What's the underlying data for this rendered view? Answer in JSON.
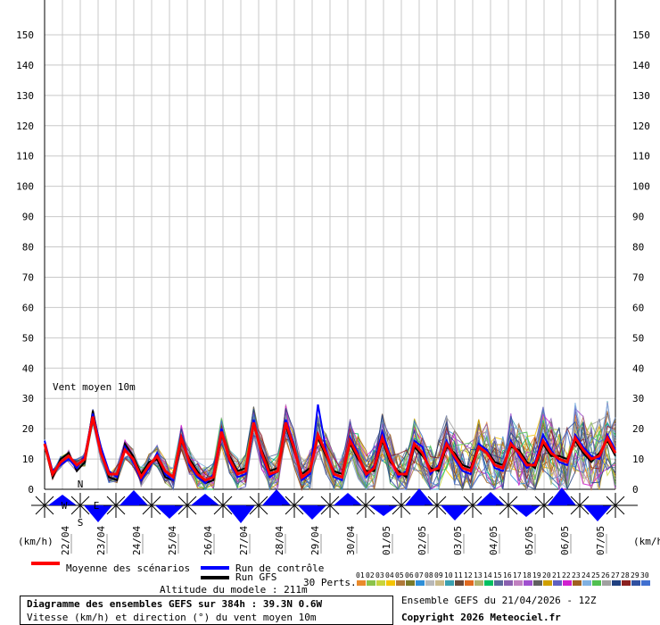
{
  "chart_data": {
    "type": "line",
    "y_ticks": [
      0,
      10,
      20,
      30,
      40,
      50,
      60,
      70,
      80,
      90,
      100,
      110,
      120,
      130,
      140,
      150
    ],
    "ylim": [
      0,
      155
    ],
    "x_dates": [
      "22/04",
      "23/04",
      "24/04",
      "25/04",
      "26/04",
      "27/04",
      "28/04",
      "29/04",
      "30/04",
      "01/05",
      "02/05",
      "03/05",
      "04/05",
      "05/05",
      "06/05",
      "07/05"
    ],
    "y_unit_left": "(km/h)",
    "y_unit_right": "(km/h)",
    "annotation": "Vent moyen 10m",
    "mean_series": {
      "name": "Moyenne des scénarios",
      "color": "#ff0000",
      "values": [
        15,
        5,
        9,
        11,
        8,
        10,
        24,
        12,
        5,
        5,
        13,
        10,
        4,
        8,
        11,
        6,
        4,
        17,
        9,
        5,
        3,
        4,
        19,
        10,
        5,
        6,
        22,
        12,
        5,
        6,
        22,
        14,
        4,
        6,
        18,
        12,
        5,
        4,
        16,
        11,
        5,
        7,
        17,
        10,
        5,
        5,
        15,
        12,
        6,
        7,
        15,
        11,
        7,
        6,
        14,
        12,
        8,
        7,
        15,
        12,
        8,
        8,
        16,
        12,
        10,
        9,
        17,
        13,
        10,
        11,
        17,
        12
      ]
    },
    "control_series": {
      "name": "Run de contrôle",
      "color": "#0000ff",
      "values": [
        16,
        6,
        8,
        10,
        7,
        11,
        25,
        14,
        6,
        4,
        14,
        9,
        3,
        7,
        12,
        5,
        3,
        18,
        8,
        4,
        2,
        5,
        20,
        9,
        4,
        5,
        23,
        11,
        4,
        6,
        23,
        15,
        3,
        5,
        28,
        13,
        4,
        3,
        17,
        12,
        4,
        8,
        19,
        11,
        4,
        6,
        16,
        14,
        5,
        8,
        16,
        10,
        6,
        5,
        15,
        13,
        7,
        6,
        16,
        11,
        7,
        9,
        18,
        13,
        9,
        8,
        18,
        14,
        11,
        10,
        18,
        13
      ]
    },
    "gfs_series": {
      "name": "Run GFS",
      "color": "#000000",
      "values": [
        15,
        4,
        10,
        12,
        6,
        9,
        26,
        13,
        4,
        3,
        15,
        11,
        5,
        9,
        10,
        4,
        3,
        16,
        10,
        6,
        2,
        3,
        18,
        11,
        6,
        7,
        21,
        13,
        6,
        7,
        21,
        13,
        5,
        7,
        17,
        11,
        6,
        5,
        15,
        10,
        6,
        6,
        16,
        9,
        6,
        4,
        14,
        11,
        7,
        6,
        14,
        12,
        8,
        7,
        15,
        13,
        9,
        8,
        14,
        13,
        9,
        7,
        15,
        11,
        11,
        10,
        16,
        12,
        9,
        12,
        16,
        11
      ]
    },
    "perturbations_label": "30 Perts.",
    "perturbation_ids": [
      "01",
      "02",
      "03",
      "04",
      "05",
      "06",
      "07",
      "08",
      "09",
      "10",
      "11",
      "12",
      "13",
      "14",
      "15",
      "16",
      "17",
      "18",
      "19",
      "20",
      "21",
      "22",
      "23",
      "24",
      "25",
      "26",
      "27",
      "28",
      "29",
      "30"
    ],
    "perturbation_colors": [
      "#e98a2b",
      "#8bc34a",
      "#c8d43c",
      "#f5c400",
      "#b07a3a",
      "#7a7a2a",
      "#2f8fd8",
      "#b8b8b8",
      "#c9b98a",
      "#3aa0b0",
      "#6a4a3a",
      "#e06a20",
      "#b0b070",
      "#00c060",
      "#5a6a9a",
      "#8a60b0",
      "#c080c0",
      "#a050d0",
      "#606060",
      "#d0a000",
      "#6060c0",
      "#d020d0",
      "#a06020",
      "#80b0e0",
      "#50c050",
      "#a0a0a0",
      "#204080",
      "#8a2020",
      "#3050a0",
      "#4070d0"
    ]
  },
  "legend": {
    "mean_label": "Moyenne des scénarios",
    "control_label": "Run de contrôle",
    "gfs_label": "Run GFS",
    "altitude": "Altitude du modele : 211m"
  },
  "compass": {
    "n": "N",
    "e": "E",
    "w": "W",
    "s": "S"
  },
  "info": {
    "title": "Diagramme des ensembles GEFS sur 384h : 39.3N 0.6W",
    "subtitle": "Vitesse (km/h) et direction (°) du vent moyen 10m",
    "run": "Ensemble GEFS du 21/04/2026 - 12Z",
    "copyright": "Copyright 2026 Meteociel.fr"
  }
}
